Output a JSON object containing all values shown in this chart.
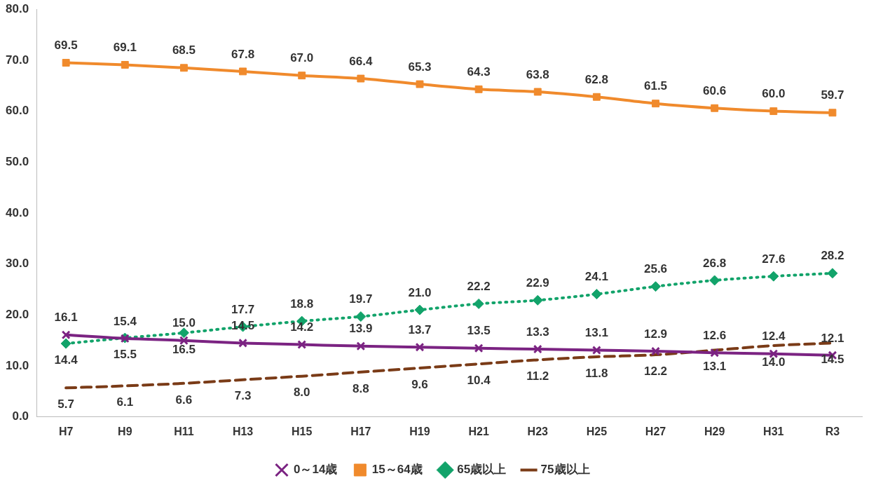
{
  "chart_data": {
    "type": "line",
    "categories": [
      "H7",
      "H9",
      "H11",
      "H13",
      "H15",
      "H17",
      "H19",
      "H21",
      "H23",
      "H25",
      "H27",
      "H29",
      "H31",
      "R3"
    ],
    "series": [
      {
        "name": "0～14歳",
        "color": "#7b2382",
        "marker": "cross",
        "line_style": "solid",
        "values": [
          16.1,
          15.4,
          15.0,
          14.5,
          14.2,
          13.9,
          13.7,
          13.5,
          13.3,
          13.1,
          12.9,
          12.6,
          12.4,
          12.1
        ],
        "value_labels": [
          "16.1",
          "15.4",
          "15.0",
          "14.5",
          "14.2",
          "13.9",
          "13.7",
          "13.5",
          "13.3",
          "13.1",
          "12.9",
          "12.6",
          "12.4",
          "12.1"
        ]
      },
      {
        "name": "15～64歳",
        "color": "#f08a2c",
        "marker": "square",
        "line_style": "solid",
        "values": [
          69.5,
          69.1,
          68.5,
          67.8,
          67.0,
          66.4,
          65.3,
          64.3,
          63.8,
          62.8,
          61.5,
          60.6,
          60.0,
          59.7
        ],
        "value_labels": [
          "69.5",
          "69.1",
          "68.5",
          "67.8",
          "67.0",
          "66.4",
          "65.3",
          "64.3",
          "63.8",
          "62.8",
          "61.5",
          "60.6",
          "60.0",
          "59.7"
        ]
      },
      {
        "name": "65歳以上",
        "color": "#12a36a",
        "marker": "diamond",
        "line_style": "dotted",
        "values": [
          14.4,
          15.5,
          16.5,
          17.7,
          18.8,
          19.7,
          21.0,
          22.2,
          22.9,
          24.1,
          25.6,
          26.8,
          27.6,
          28.2
        ],
        "value_labels": [
          "14.4",
          "15.5",
          "16.5",
          "17.7",
          "18.8",
          "19.7",
          "21.0",
          "22.2",
          "22.9",
          "24.1",
          "25.6",
          "26.8",
          "27.6",
          "28.2"
        ]
      },
      {
        "name": "75歳以上",
        "color": "#7a3b17",
        "marker": "none",
        "line_style": "dashed",
        "values": [
          5.7,
          6.1,
          6.6,
          7.3,
          8.0,
          8.8,
          9.6,
          10.4,
          11.2,
          11.8,
          12.2,
          13.1,
          14.0,
          14.5
        ],
        "value_labels": [
          "5.7",
          "6.1",
          "6.6",
          "7.3",
          "8.0",
          "8.8",
          "9.6",
          "10.4",
          "11.2",
          "11.8",
          "12.2",
          "13.1",
          "14.0",
          "14.5"
        ]
      }
    ],
    "ylim": [
      0,
      80
    ],
    "yticks": [
      {
        "value": 0,
        "label": "0.0"
      },
      {
        "value": 10,
        "label": "10.0"
      },
      {
        "value": 20,
        "label": "20.0"
      },
      {
        "value": 30,
        "label": "30.0"
      },
      {
        "value": 40,
        "label": "40.0"
      },
      {
        "value": 50,
        "label": "50.0"
      },
      {
        "value": 60,
        "label": "60.0"
      },
      {
        "value": 70,
        "label": "70.0"
      },
      {
        "value": 80,
        "label": "80.0"
      }
    ],
    "grid": false,
    "legend": "bottom"
  }
}
